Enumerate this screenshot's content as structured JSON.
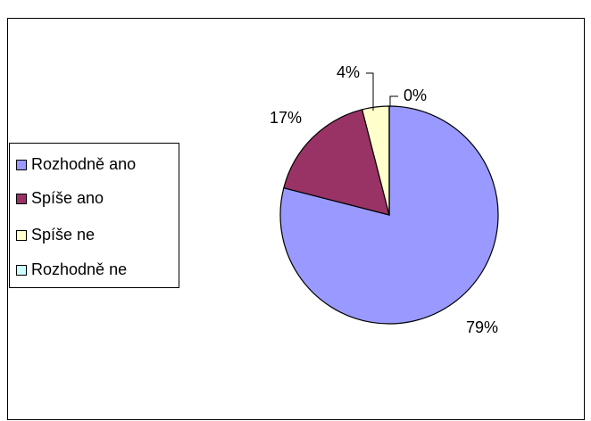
{
  "chart_data": {
    "type": "pie",
    "categories": [
      "Rozhodně ano",
      "Spíše ano",
      "Spíše ne",
      "Rozhodně ne"
    ],
    "values": [
      79,
      17,
      4,
      0
    ],
    "value_labels": [
      "79%",
      "17%",
      "4%",
      "0%"
    ],
    "colors": [
      "#9999ff",
      "#993366",
      "#ffffcc",
      "#ccffff"
    ],
    "legend": "left"
  }
}
